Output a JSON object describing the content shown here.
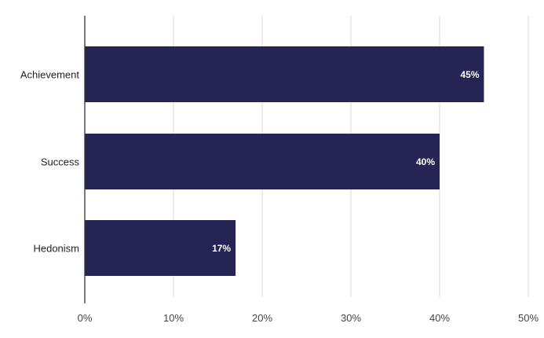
{
  "chart_data": {
    "type": "bar",
    "orientation": "horizontal",
    "categories": [
      "Achievement",
      "Success",
      "Hedonism"
    ],
    "values": [
      45,
      40,
      17
    ],
    "data_labels": [
      "45%",
      "40%",
      "17%"
    ],
    "xlim": [
      0,
      50
    ],
    "xticks": [
      0,
      10,
      20,
      30,
      40,
      50
    ],
    "xtick_labels": [
      "0%",
      "10%",
      "20%",
      "30%",
      "40%",
      "50%"
    ],
    "title": "",
    "xlabel": "",
    "ylabel": "",
    "grid": "vertical",
    "legend": "none",
    "colors": {
      "bar": "#262455",
      "grid": "#d9d9d9",
      "axis": "#333333",
      "data_label": "#ffffff"
    }
  }
}
